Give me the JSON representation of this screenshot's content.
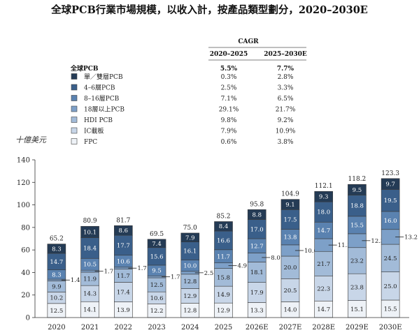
{
  "title": "全球PCB行業市場規模，以收入計，按產品類型劃分，2020–2030E",
  "cagr_table": {
    "header": "CAGR",
    "col1": "2020–2025",
    "col2": "2025–2030E",
    "total_label": "全球PCB",
    "total_col1": "5.5%",
    "total_col2": "7.7%",
    "rows": [
      {
        "label": "單／雙層PCB",
        "c1": "0.3%",
        "c2": "2.8%",
        "color": "#243b55"
      },
      {
        "label": "4–6層PCB",
        "c1": "2.5%",
        "c2": "3.3%",
        "color": "#3a5f8a"
      },
      {
        "label": "8–16層PCB",
        "c1": "7.1%",
        "c2": "6.5%",
        "color": "#5a82b0"
      },
      {
        "label": "18層以上PCB",
        "c1": "29.1%",
        "c2": "21.7%",
        "color": "#7da0c8"
      },
      {
        "label": "HDI PCB",
        "c1": "9.8%",
        "c2": "9.2%",
        "color": "#a2bbd8"
      },
      {
        "label": "IC載板",
        "c1": "7.9%",
        "c2": "10.9%",
        "color": "#c8d6e8"
      },
      {
        "label": "FPC",
        "c1": "0.6%",
        "c2": "3.8%",
        "color": "#eef2f7"
      }
    ]
  },
  "chart_data": {
    "type": "bar",
    "stacked": true,
    "unit_label": "十億美元",
    "categories": [
      "2020",
      "2021",
      "2022",
      "2023",
      "2024",
      "2025",
      "2026E",
      "2027E",
      "2028E",
      "2029E",
      "2030E"
    ],
    "series": [
      {
        "name": "FPC",
        "color": "#eef2f7",
        "values": [
          12.5,
          14.1,
          13.9,
          12.2,
          12.8,
          12.9,
          13.3,
          14.0,
          14.7,
          15.1,
          15.5
        ]
      },
      {
        "name": "IC載板",
        "color": "#c8d6e8",
        "values": [
          10.2,
          14.3,
          17.4,
          10.6,
          12.9,
          14.9,
          17.9,
          20.5,
          22.3,
          23.8,
          25.0
        ]
      },
      {
        "name": "HDI PCB",
        "color": "#a2bbd8",
        "values": [
          9.9,
          11.9,
          11.7,
          12.5,
          12.8,
          15.8,
          18.1,
          20.0,
          21.7,
          23.2,
          24.5
        ]
      },
      {
        "name": "18層以上PCB",
        "color": "#7da0c8",
        "values": [
          1.4,
          1.7,
          1.7,
          1.7,
          2.5,
          4.9,
          8.0,
          10.0,
          11.3,
          12.3,
          13.2
        ]
      },
      {
        "name": "8–16層PCB",
        "color": "#5a82b0",
        "values": [
          8.3,
          10.5,
          10.6,
          9.5,
          10.0,
          11.7,
          12.7,
          13.8,
          14.7,
          15.5,
          16.0
        ]
      },
      {
        "name": "4–6層PCB",
        "color": "#3a5f8a",
        "values": [
          14.7,
          18.4,
          17.7,
          15.6,
          16.1,
          16.6,
          17.0,
          17.5,
          18.0,
          18.8,
          19.5
        ]
      },
      {
        "name": "單／雙層PCB",
        "color": "#243b55",
        "values": [
          8.3,
          10.1,
          8.6,
          7.4,
          7.9,
          8.4,
          8.8,
          9.1,
          9.3,
          9.5,
          9.7
        ]
      }
    ],
    "totals": [
      "65.2",
      "80.9",
      "81.7",
      "69.5",
      "75.0",
      "85.2",
      "95.8",
      "104.9",
      "112.1",
      "118.2",
      "123.3"
    ],
    "callout_series_index": 3,
    "ylim": [
      0,
      140
    ],
    "yticks": [
      0,
      20,
      40,
      60,
      80,
      100,
      120,
      140
    ],
    "grid": false
  }
}
